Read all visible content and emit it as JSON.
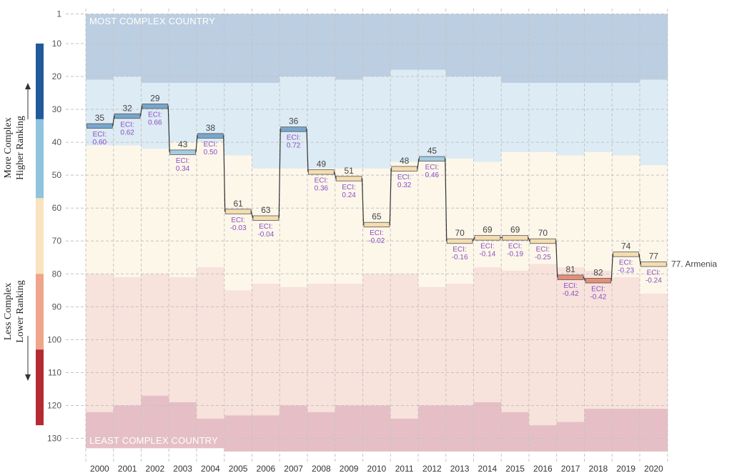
{
  "chart_data": {
    "type": "step-rank",
    "title": "",
    "country": "Armenia",
    "end_label": "77. Armenia",
    "years": [
      "2000",
      "2001",
      "2002",
      "2003",
      "2004",
      "2005",
      "2006",
      "2007",
      "2008",
      "2009",
      "2010",
      "2011",
      "2012",
      "2013",
      "2014",
      "2015",
      "2016",
      "2017",
      "2018",
      "2019",
      "2020"
    ],
    "ranks": [
      35,
      32,
      29,
      43,
      38,
      61,
      63,
      36,
      49,
      51,
      65,
      48,
      45,
      70,
      69,
      69,
      70,
      81,
      82,
      74,
      77
    ],
    "eci_prefix": "ECI:",
    "eci": [
      "0.60",
      "0.62",
      "0.66",
      "0.34",
      "0.50",
      "-0.03",
      "-0.04",
      "0.72",
      "0.36",
      "0.24",
      "-0.02",
      "0.32",
      "0.46",
      "-0.16",
      "-0.14",
      "-0.19",
      "-0.25",
      "-0.42",
      "-0.42",
      "-0.23",
      "-0.24"
    ],
    "yticks": [
      1,
      10,
      20,
      30,
      40,
      50,
      60,
      70,
      80,
      90,
      100,
      110,
      120,
      130
    ],
    "ylim": [
      1,
      133
    ],
    "quartile_bounds": {
      "q1_end": [
        21,
        20,
        22,
        22,
        22,
        22,
        22,
        20,
        20,
        21,
        20,
        18,
        18,
        20,
        20,
        22,
        22,
        22,
        22,
        22,
        21
      ],
      "q2_end": [
        41,
        41,
        42,
        40,
        40,
        44,
        48,
        48,
        48,
        48,
        48,
        46,
        45,
        45,
        46,
        43,
        43,
        44,
        43,
        44,
        47
      ],
      "q3_end": [
        80,
        81,
        80,
        81,
        78,
        85,
        83,
        84,
        83,
        83,
        80,
        80,
        84,
        83,
        78,
        79,
        77,
        78,
        79,
        81,
        86
      ],
      "q4_end": [
        122,
        120,
        117,
        119,
        124,
        123,
        123,
        120,
        122,
        120,
        120,
        124,
        120,
        120,
        119,
        122,
        126,
        125,
        121,
        121,
        121
      ],
      "bottom": [
        133,
        133,
        133,
        133,
        133,
        134,
        134,
        134,
        134,
        134,
        134,
        134,
        134,
        134,
        134,
        134,
        134,
        134,
        134,
        134,
        134
      ]
    },
    "band_top_label": "MOST COMPLEX COUNTRY",
    "band_bottom_label": "LEAST COMPLEX COUNTRY",
    "axis_title_top": [
      "More Complex",
      "Higher Ranking"
    ],
    "axis_title_bottom": [
      "Less Complex",
      "Lower Ranking"
    ],
    "colors": {
      "q1": "#bccee1",
      "q2": "#ddebf4",
      "q3": "#fdf7ea",
      "q4": "#f8e2dc",
      "q5": "#e6bfc6",
      "grid": "#c3c3c3",
      "step_line": "#333333",
      "scale_q1": "#22599a",
      "scale_q2": "#8fc3de",
      "scale_q3": "#f9e3c0",
      "scale_q4": "#eea58b",
      "scale_q5": "#b52a33",
      "marker_q1": "#78a6cd",
      "marker_q2": "#a5cbe3",
      "marker_q3": "#f5ddb2",
      "marker_q4": "#e58f76"
    }
  }
}
